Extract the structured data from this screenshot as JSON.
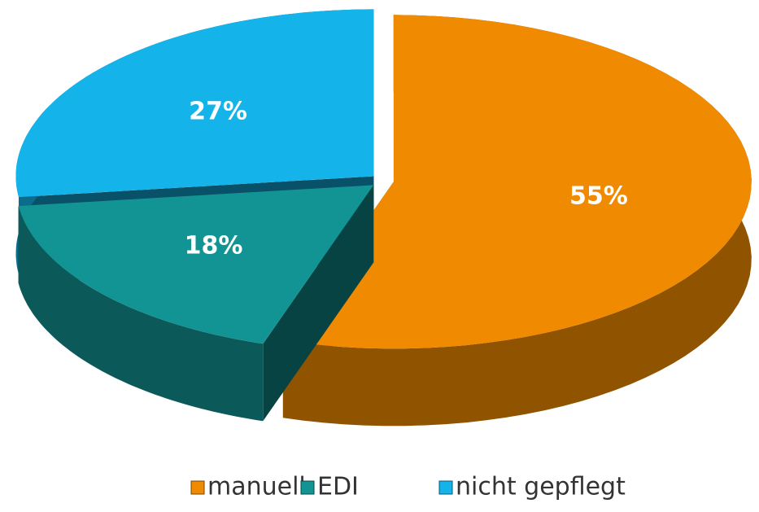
{
  "chart_data": {
    "type": "pie",
    "categories": [
      "manuell",
      "EDI",
      "nicht gepflegt"
    ],
    "values": [
      55,
      18,
      27
    ],
    "value_labels": [
      "55%",
      "18%",
      "27%"
    ],
    "colors": [
      "#f08a00",
      "#129494",
      "#14b4ea"
    ],
    "legend": "bottom"
  }
}
